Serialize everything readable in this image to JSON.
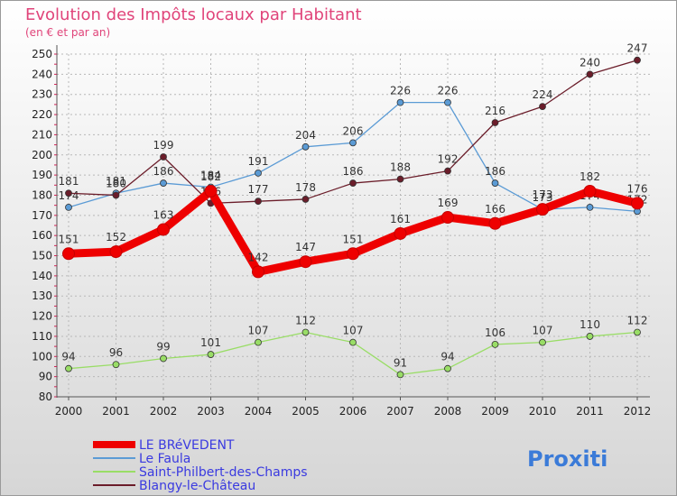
{
  "chart_data": {
    "type": "line",
    "title": "Evolution des Impôts locaux par Habitant",
    "subtitle": "(en € et par an)",
    "xlabel": "",
    "ylabel": "",
    "x": [
      "2000",
      "2001",
      "2002",
      "2003",
      "2004",
      "2005",
      "2006",
      "2007",
      "2008",
      "2009",
      "2010",
      "2011",
      "2012"
    ],
    "ylim": [
      80,
      250
    ],
    "yticks": [
      "80",
      "90",
      "100",
      "110",
      "120",
      "130",
      "140",
      "150",
      "160",
      "170",
      "180",
      "190",
      "200",
      "210",
      "220",
      "230",
      "240",
      "250"
    ],
    "grid": true,
    "legend_position": "bottom-left",
    "series": [
      {
        "name": "Le Faula",
        "color": "#5b9bd5",
        "values": [
          174,
          181,
          186,
          184,
          191,
          204,
          206,
          226,
          226,
          186,
          173,
          174,
          172
        ],
        "labels": [
          "174",
          "181",
          "186",
          "184",
          "191",
          "204",
          "206",
          "226",
          "226",
          "186",
          "173",
          "174",
          "172"
        ]
      },
      {
        "name": "Saint-Philbert-des-Champs",
        "color": "#99dd66",
        "values": [
          94,
          96,
          99,
          101,
          107,
          112,
          107,
          91,
          94,
          106,
          107,
          110,
          112
        ],
        "labels": [
          "94",
          "96",
          "99",
          "101",
          "107",
          "112",
          "107",
          "91",
          "94",
          "106",
          "107",
          "110",
          "112"
        ]
      },
      {
        "name": "Blangy-le-Château",
        "color": "#6b1d2a",
        "values": [
          181,
          180,
          199,
          176,
          177,
          178,
          186,
          188,
          192,
          216,
          224,
          240,
          247
        ],
        "labels": [
          "181",
          "180",
          "199",
          "176",
          "177",
          "178",
          "186",
          "188",
          "192",
          "216",
          "224",
          "240",
          "247"
        ]
      },
      {
        "name": "LE BRéVEDENT",
        "color": "#ee0000",
        "values": [
          151,
          152,
          163,
          182,
          142,
          147,
          151,
          161,
          169,
          166,
          173,
          182,
          176
        ],
        "labels": [
          "151",
          "152",
          "163",
          "182",
          "142",
          "147",
          "151",
          "161",
          "169",
          "166",
          "173",
          "182",
          "176"
        ]
      }
    ],
    "legend": [
      "LE BRéVEDENT",
      "Le Faula",
      "Saint-Philbert-des-Champs",
      "Blangy-le-Château"
    ]
  },
  "brand": {
    "logo_text": "Proxiti"
  }
}
